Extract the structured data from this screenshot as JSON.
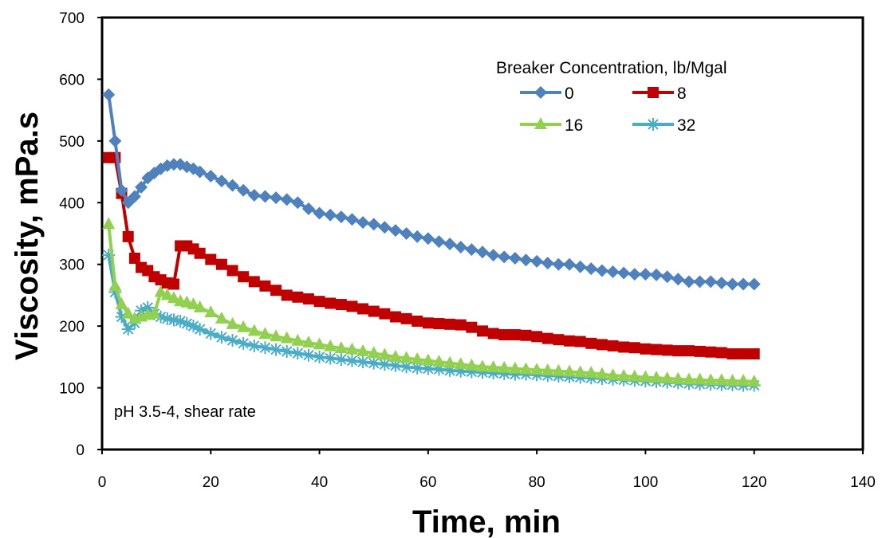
{
  "chart_data": {
    "type": "line",
    "title": "",
    "xlabel": "Time, min",
    "ylabel": "Viscosity, mPa.s",
    "xlim": [
      0,
      140
    ],
    "ylim": [
      0,
      700
    ],
    "x_ticks": [
      "0",
      "20",
      "40",
      "60",
      "80",
      "100",
      "120",
      "140"
    ],
    "y_ticks": [
      "0",
      "100",
      "200",
      "300",
      "400",
      "500",
      "600",
      "700"
    ],
    "grid": false,
    "legend": {
      "title": "Breaker Concentration, lb/Mgal",
      "placement": "top-right",
      "columns": 2
    },
    "annotation": "pH 3.5-4, shear rate",
    "series": [
      {
        "name": "0",
        "color": "#4F81BD",
        "marker": "diamond",
        "x": [
          1.2,
          2.4,
          3.6,
          4.8,
          6,
          7.2,
          8.4,
          9.6,
          10.8,
          12,
          13.2,
          14.4,
          15.6,
          16.8,
          18,
          20,
          22,
          24,
          26,
          28,
          30,
          32,
          34,
          36,
          38,
          40,
          42,
          44,
          46,
          48,
          50,
          52,
          54,
          56,
          58,
          60,
          62,
          64,
          66,
          68,
          70,
          72,
          74,
          76,
          78,
          80,
          82,
          84,
          86,
          88,
          90,
          92,
          94,
          96,
          98,
          100,
          102,
          104,
          106,
          108,
          110,
          112,
          114,
          116,
          118,
          120
        ],
        "values": [
          575,
          500,
          420,
          400,
          410,
          425,
          440,
          448,
          455,
          460,
          462,
          462,
          458,
          455,
          450,
          443,
          435,
          428,
          420,
          412,
          410,
          408,
          405,
          400,
          390,
          383,
          380,
          377,
          373,
          368,
          365,
          360,
          355,
          350,
          345,
          342,
          337,
          333,
          328,
          324,
          320,
          315,
          312,
          310,
          307,
          305,
          302,
          300,
          300,
          296,
          293,
          290,
          288,
          286,
          284,
          284,
          283,
          280,
          276,
          272,
          272,
          272,
          270,
          268,
          268,
          268
        ]
      },
      {
        "name": "8",
        "color": "#C00000",
        "marker": "square",
        "x": [
          1.2,
          2.4,
          3.6,
          4.8,
          6,
          7.2,
          8.4,
          9.6,
          10.8,
          12,
          13.2,
          14.4,
          15.6,
          16.8,
          18,
          20,
          22,
          24,
          26,
          28,
          30,
          32,
          34,
          36,
          38,
          40,
          42,
          44,
          46,
          48,
          50,
          52,
          54,
          56,
          58,
          60,
          62,
          64,
          66,
          68,
          70,
          72,
          74,
          76,
          78,
          80,
          82,
          84,
          86,
          88,
          90,
          92,
          94,
          96,
          98,
          100,
          102,
          104,
          106,
          108,
          110,
          112,
          114,
          116,
          118,
          120
        ],
        "values": [
          473,
          473,
          415,
          345,
          310,
          295,
          290,
          280,
          275,
          270,
          268,
          330,
          330,
          325,
          318,
          308,
          300,
          290,
          280,
          272,
          265,
          258,
          250,
          247,
          244,
          240,
          237,
          235,
          232,
          228,
          224,
          220,
          215,
          212,
          208,
          205,
          204,
          203,
          202,
          198,
          192,
          188,
          186,
          186,
          185,
          183,
          180,
          178,
          176,
          175,
          172,
          170,
          168,
          166,
          165,
          163,
          162,
          161,
          160,
          160,
          159,
          158,
          157,
          155,
          155,
          155
        ]
      },
      {
        "name": "16",
        "color": "#92D050",
        "marker": "triangle",
        "x": [
          1.2,
          2.4,
          3.6,
          4.8,
          6,
          7.2,
          8.4,
          9.6,
          10.8,
          12,
          13.2,
          14.4,
          15.6,
          16.8,
          18,
          20,
          22,
          24,
          26,
          28,
          30,
          32,
          34,
          36,
          38,
          40,
          42,
          44,
          46,
          48,
          50,
          52,
          54,
          56,
          58,
          60,
          62,
          64,
          66,
          68,
          70,
          72,
          74,
          76,
          78,
          80,
          82,
          84,
          86,
          88,
          90,
          92,
          94,
          96,
          98,
          100,
          102,
          104,
          106,
          108,
          110,
          112,
          114,
          116,
          118,
          120
        ],
        "values": [
          365,
          265,
          235,
          220,
          212,
          215,
          218,
          220,
          255,
          250,
          245,
          240,
          238,
          235,
          230,
          222,
          212,
          203,
          198,
          192,
          187,
          183,
          180,
          176,
          173,
          170,
          167,
          164,
          162,
          159,
          156,
          153,
          150,
          148,
          146,
          144,
          142,
          140,
          138,
          136,
          134,
          133,
          132,
          131,
          130,
          129,
          128,
          127,
          126,
          125,
          124,
          122,
          120,
          119,
          118,
          117,
          116,
          115,
          114,
          113,
          113,
          112,
          112,
          111,
          111,
          110
        ]
      },
      {
        "name": "32",
        "color": "#4BACC6",
        "marker": "star",
        "x": [
          1.2,
          2.4,
          3.6,
          4.8,
          6,
          7.2,
          8.4,
          9.6,
          10.8,
          12,
          13.2,
          14.4,
          15.6,
          16.8,
          18,
          20,
          22,
          24,
          26,
          28,
          30,
          32,
          34,
          36,
          38,
          40,
          42,
          44,
          46,
          48,
          50,
          52,
          54,
          56,
          58,
          60,
          62,
          64,
          66,
          68,
          70,
          72,
          74,
          76,
          78,
          80,
          82,
          84,
          86,
          88,
          90,
          92,
          94,
          96,
          98,
          100,
          102,
          104,
          106,
          108,
          110,
          112,
          114,
          116,
          118,
          120
        ],
        "values": [
          315,
          255,
          215,
          195,
          205,
          225,
          230,
          220,
          215,
          212,
          210,
          208,
          204,
          200,
          195,
          188,
          182,
          177,
          172,
          168,
          165,
          162,
          159,
          156,
          153,
          150,
          148,
          146,
          144,
          142,
          140,
          138,
          136,
          134,
          132,
          131,
          130,
          128,
          127,
          126,
          125,
          124,
          123,
          122,
          122,
          121,
          120,
          119,
          118,
          117,
          116,
          115,
          114,
          113,
          112,
          111,
          110,
          109,
          108,
          107,
          106,
          106,
          105,
          105,
          104,
          104
        ]
      }
    ]
  }
}
